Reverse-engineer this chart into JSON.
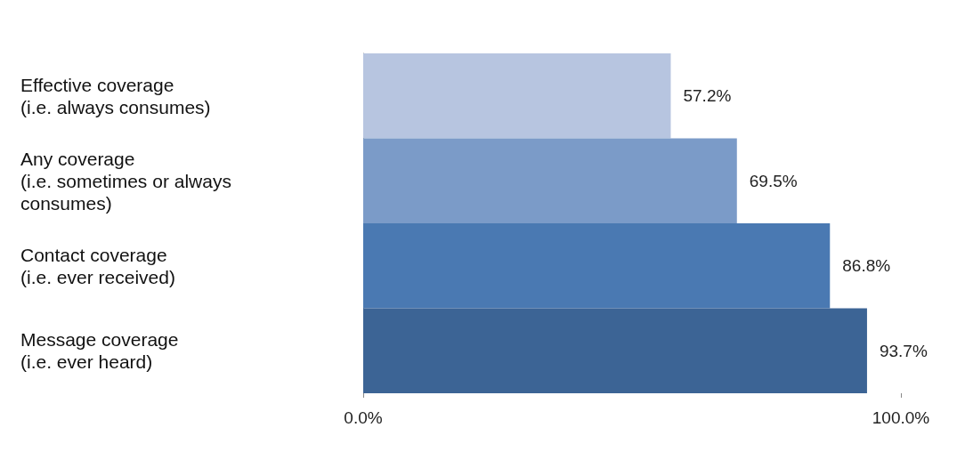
{
  "chart_data": {
    "type": "bar",
    "orientation": "horizontal",
    "categories": [
      "Effective coverage\n(i.e. always consumes)",
      "Any coverage\n(i.e. sometimes or always\nconsumes)",
      "Contact coverage\n(i.e. ever received)",
      "Message coverage\n(i.e. ever heard)"
    ],
    "values": [
      57.2,
      69.5,
      86.8,
      93.7
    ],
    "colors": [
      "#b7c5e0",
      "#7b9bc8",
      "#4a79b2",
      "#3c6495"
    ],
    "value_labels": [
      "57.2%",
      "69.5%",
      "86.8%",
      "93.7%"
    ],
    "xlim": [
      0,
      100
    ],
    "xticks": [
      {
        "value": 0,
        "label": "0.0%"
      },
      {
        "value": 100,
        "label": "100.0%"
      }
    ],
    "grid": false
  }
}
